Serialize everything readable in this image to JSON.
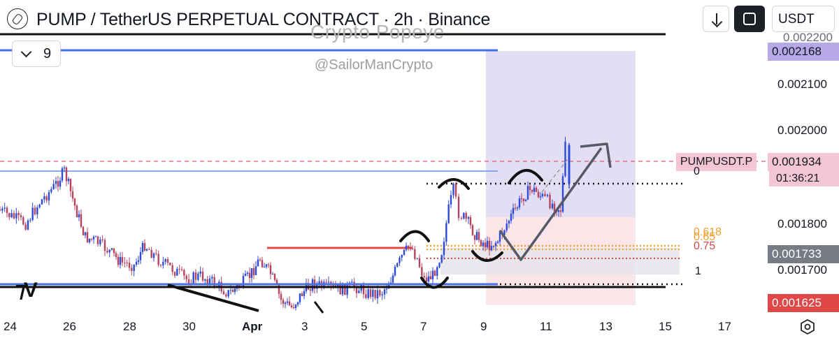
{
  "header": {
    "title": "PUMP / TetherUS PERPETUAL CONTRACT · 2h · Binance",
    "indicator_count": "9",
    "currency": "USDT"
  },
  "watermark": {
    "name": "Crypto Popeye",
    "handle": "@SailorManCrypto"
  },
  "price_axis": {
    "ticks": [
      "0.002100",
      "0.002000",
      "0.001800",
      "0.001700"
    ],
    "top_cut_label": "0.002200"
  },
  "badges": {
    "top": "0.002168",
    "current": "0.001934",
    "symbol": "PUMPUSDT.P",
    "countdown": "01:36:21",
    "mid": "0.001733",
    "bottom": "0.001625"
  },
  "fib_labels": {
    "zero": "0",
    "f0618": "0.618",
    "f065": "0.65",
    "f075": "0.75",
    "one": "1"
  },
  "time_axis": [
    "24",
    "26",
    "28",
    "30",
    "Apr",
    "3",
    "5",
    "7",
    "9",
    "11",
    "13",
    "15",
    "17"
  ],
  "colors": {
    "candle_up": "#2d4bd6",
    "candle_down": "#b5435e",
    "zone_purple": "#d9d3f0",
    "zone_red": "#f8dcdf",
    "resistance_blue": "#4a6fe0",
    "badge_purple": "#b6a7e6",
    "badge_grey": "#787b86",
    "badge_red": "#e04848",
    "fib_orange": "#f0a030",
    "fib_red": "#d84a4a"
  },
  "icons": [
    "pencil-logo-icon",
    "arrow-down-icon",
    "sync-square-icon",
    "settings-icon",
    "tradingview-logo-icon"
  ],
  "chart_data": {
    "type": "candlestick",
    "title": "PUMP / TetherUS PERPETUAL CONTRACT · 2h · Binance",
    "ylim": [
      0.0016,
      0.00222
    ],
    "x_ticks": [
      "24",
      "26",
      "28",
      "30",
      "Apr",
      "3",
      "5",
      "7",
      "9",
      "11",
      "13",
      "15",
      "17"
    ],
    "levels": [
      {
        "price": 0.002168,
        "label": "0.002168"
      },
      {
        "price": 0.001934,
        "label": "0.001934"
      },
      {
        "price": 0.001733,
        "label": "0.001733"
      },
      {
        "price": 0.001625,
        "label": "0.001625"
      }
    ],
    "fibonacci": [
      "0",
      "0.618",
      "0.65",
      "0.75",
      "1"
    ],
    "grid": false
  }
}
